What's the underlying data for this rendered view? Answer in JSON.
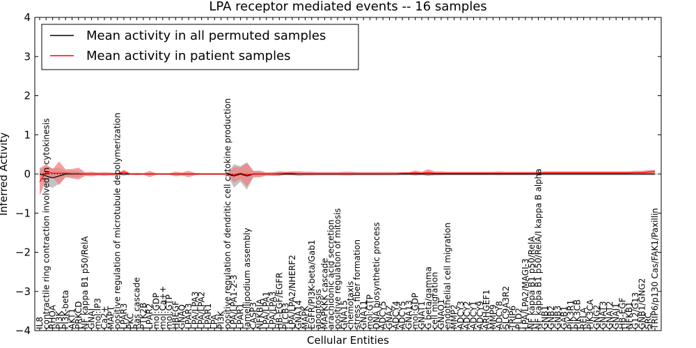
{
  "chart_data": {
    "type": "line",
    "title": "LPA receptor mediated events -- 16 samples",
    "xlabel": "Cellular Entities",
    "ylabel": "Inferred Activity",
    "ylim": [
      -4,
      4
    ],
    "yticks": [
      -4,
      -3,
      -2,
      -1,
      0,
      1,
      2,
      3,
      4
    ],
    "ytick_labels": [
      "−4",
      "−3",
      "−2",
      "−1",
      "0",
      "1",
      "2",
      "3",
      "4"
    ],
    "legend": {
      "location": "top-left",
      "entries": [
        {
          "label": "Mean activity in all permuted samples",
          "color": "#000000"
        },
        {
          "label": "Mean activity in patient samples",
          "color": "#ff0000"
        }
      ]
    },
    "categories": [
      "IL8",
      "contractile ring contraction involved in cytokinesis",
      "RHOA",
      "PI3K",
      "PI3K-beta",
      "AKT1",
      "PRKCD",
      "NF kappa B1 p50/RelA",
      "GNAI",
      "mol:IP3",
      "Ca2+",
      "MAPT",
      "positive regulation of microtubule depolymerization",
      "LPAR3",
      "PKC",
      "Ras cascade",
      "PTK2B",
      "LPAR2",
      "mol:GDP",
      "mol:Ca++",
      "mol:GTP",
      "HBEGF",
      "GNAQ",
      "LPAR3",
      "LPA/LPA3",
      "LPA/LPA2",
      "LPAR1",
      "LPA",
      "PI3K",
      "positive regulation of dendritic cell cytokine production",
      "LPA/LPA1-2-3",
      "LPAR1",
      "lamellipodium assembly",
      "CASP3",
      "NFKBIA",
      "LPA/LPA1",
      "LPA/LPA3",
      "HB-EGF/EGFR",
      "PLCB3",
      "LPA/LPA2/NHERF2",
      "GNA14",
      "MAPK",
      "EGFR/PI3K-beta/Gab1",
      "apoptosis",
      "MAPKKK cascade",
      "arachidonic acid secretion",
      "positive regulation of mitosis",
      "GNA15",
      "chemotaxis",
      "stress fiber formation",
      "GNA11",
      "mol:GTP",
      "DNA biosynthetic process",
      "ADCY5",
      "GNAZ",
      "ADCY4",
      "ADCY5",
      "GNA13",
      "mol:GDP",
      "GNAT1",
      "G beta/gamma",
      "cell migration",
      "GNAO1",
      "endothelial cell migration",
      "MMP2",
      "ADCY3",
      "ADCY2",
      "ADCY1",
      "ADCY9",
      "ARHGEF1",
      "MMP9",
      "ADCY8",
      "SLC9A3R2",
      "TRIP6",
      "PLD2",
      "LPA/LPA2/MAGI-3",
      "NF kappa B1 p50/RelA",
      "NF kappa B1 p50/RelA/I kappa B alpha",
      "GNB1",
      "GNB2",
      "GNB3",
      "GAB1",
      "PIK3R1",
      "PIK3CB",
      "RELA",
      "PIK3CA",
      "GNG2",
      "GNAT3",
      "GNAT2",
      "GNAI1",
      "HB-EGF",
      "NFKB1",
      "G12/G13",
      "GNB1/GNG2",
      "SRC",
      "TRIP6/p130 Cas/FAK1/Paxillin"
    ],
    "series": [
      {
        "name": "Mean activity in all permuted samples",
        "color": "#000000",
        "values": [
          0,
          -0.05,
          -0.1,
          -0.05,
          0,
          0,
          0,
          0,
          0,
          0,
          0,
          0,
          0,
          0,
          0,
          0,
          0,
          0,
          0,
          0,
          0,
          0,
          0,
          0,
          0,
          0,
          0,
          0,
          0,
          0,
          -0.05,
          0,
          -0.05,
          0,
          0,
          0,
          0,
          0,
          0,
          0,
          0,
          0,
          0,
          0,
          0,
          0,
          0,
          0,
          0,
          0,
          0,
          0,
          0,
          0,
          0,
          0,
          0,
          0,
          0,
          0,
          0,
          0,
          0,
          0,
          0,
          0,
          0,
          0,
          0,
          0,
          0,
          0,
          0,
          0,
          0,
          0,
          0,
          0,
          0,
          0,
          0,
          0,
          0,
          0,
          0,
          0,
          0,
          0,
          0,
          0,
          0,
          0,
          0,
          0,
          0,
          0
        ]
      },
      {
        "name": "Mean activity in patient samples",
        "color": "#ff0000",
        "values": [
          -0.2,
          0.05,
          0.02,
          0.02,
          0.02,
          0.01,
          0.01,
          0,
          0,
          0,
          0,
          0,
          0,
          0.05,
          0,
          0,
          0,
          0,
          0,
          0,
          0,
          0,
          0,
          0,
          0,
          0,
          0,
          0,
          0,
          0,
          -0.02,
          0.02,
          -0.02,
          0,
          0,
          0,
          0,
          0.01,
          0.02,
          0.02,
          0.01,
          0.01,
          0.01,
          0.01,
          0.01,
          0.01,
          0.01,
          0.01,
          0.01,
          0.01,
          0.01,
          0.01,
          0.01,
          0.01,
          0.01,
          0.01,
          0.02,
          0.02,
          0.03,
          0.02,
          0.04,
          0.02,
          0.02,
          0.02,
          0.02,
          0.02,
          0.02,
          0.02,
          0.02,
          0.02,
          0.02,
          0.02,
          0.02,
          0.02,
          0.02,
          0.02,
          0.02,
          0.02,
          0.03,
          0.03,
          0.03,
          0.03,
          0.03,
          0.03,
          0.03,
          0.03,
          0.03,
          0.03,
          0.03,
          0.03,
          0.03,
          0.03,
          0.04,
          0.04,
          0.05,
          0.06
        ]
      }
    ],
    "bands": [
      {
        "name": "patient variation",
        "color": "#f08080",
        "half_width": [
          0.35,
          0.2,
          0.1,
          0.3,
          0.1,
          0.12,
          0.15,
          0.05,
          0.06,
          0.04,
          0.05,
          0.04,
          0.03,
          0.06,
          0.02,
          0.03,
          0.02,
          0.08,
          0.02,
          0.02,
          0.02,
          0.06,
          0.04,
          0.08,
          0.03,
          0.02,
          0.02,
          0.02,
          0.02,
          0.02,
          0.2,
          0.15,
          0.3,
          0.08,
          0.08,
          0.04,
          0.05,
          0.06,
          0.04,
          0.05,
          0.06,
          0.05,
          0.05,
          0.04,
          0.04,
          0.04,
          0.04,
          0.05,
          0.05,
          0.04,
          0.04,
          0.04,
          0.04,
          0.04,
          0.04,
          0.04,
          0.03,
          0.03,
          0.06,
          0.04,
          0.08,
          0.05,
          0.05,
          0.04,
          0.04,
          0.04,
          0.04,
          0.04,
          0.04,
          0.04,
          0.04,
          0.05,
          0.04,
          0.04,
          0.04,
          0.04,
          0.04,
          0.04,
          0.04,
          0.04,
          0.04,
          0.04,
          0.04,
          0.04,
          0.04,
          0.04,
          0.04,
          0.04,
          0.04,
          0.04,
          0.04,
          0.04,
          0.04,
          0.04,
          0.05,
          0.05
        ]
      },
      {
        "name": "permutation variation",
        "color": "#aaaaaa",
        "half_width": [
          0.1,
          0.25,
          0.25,
          0.2,
          0.08,
          0.08,
          0.08,
          0.02,
          0.02,
          0.02,
          0.02,
          0.02,
          0.02,
          0.05,
          0.02,
          0.02,
          0.02,
          0.02,
          0.02,
          0.02,
          0.02,
          0.02,
          0.02,
          0.02,
          0.02,
          0.02,
          0.02,
          0.02,
          0.02,
          0.02,
          0.3,
          0.2,
          0.35,
          0.08,
          0.08,
          0.04,
          0.04,
          0.04,
          0.03,
          0.03,
          0.03,
          0.03,
          0.03,
          0.03,
          0.03,
          0.03,
          0.03,
          0.03,
          0.03,
          0.03,
          0.03,
          0.03,
          0.03,
          0.03,
          0.03,
          0.03,
          0.03,
          0.03,
          0.04,
          0.03,
          0.05,
          0.03,
          0.03,
          0.03,
          0.03,
          0.03,
          0.03,
          0.03,
          0.03,
          0.03,
          0.03,
          0.03,
          0.03,
          0.03,
          0.03,
          0.03,
          0.03,
          0.03,
          0.03,
          0.03,
          0.03,
          0.03,
          0.03,
          0.03,
          0.03,
          0.03,
          0.03,
          0.03,
          0.03,
          0.03,
          0.03,
          0.03,
          0.03,
          0.03,
          0.03,
          0.03
        ]
      }
    ],
    "reference_line": {
      "y": 0,
      "style": "dotted"
    }
  }
}
